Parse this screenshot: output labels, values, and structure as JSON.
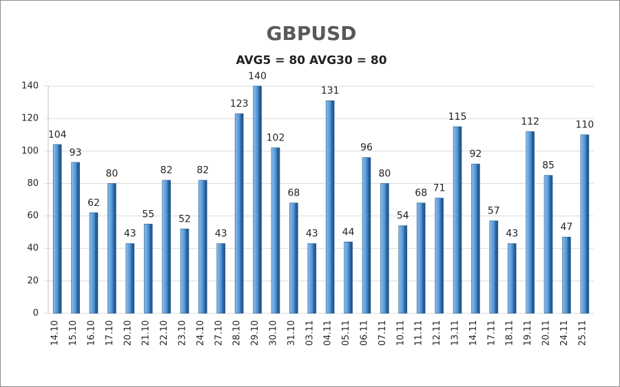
{
  "chart_data": {
    "type": "bar",
    "title": "GBPUSD",
    "subtitle": "AVG5 = 80 AVG30 = 80",
    "categories": [
      "14.10",
      "15.10",
      "16.10",
      "17.10",
      "20.10",
      "21.10",
      "22.10",
      "23.10",
      "24.10",
      "27.10",
      "28.10",
      "29.10",
      "30.10",
      "31.10",
      "03.11",
      "04.11",
      "05.11",
      "06.11",
      "07.11",
      "10.11",
      "11.11",
      "12.11",
      "13.11",
      "14.11",
      "17.11",
      "18.11",
      "19.11",
      "20.11",
      "24.11",
      "25.11"
    ],
    "values": [
      104,
      93,
      62,
      80,
      43,
      55,
      82,
      52,
      82,
      43,
      123,
      140,
      102,
      68,
      43,
      131,
      44,
      96,
      80,
      54,
      68,
      71,
      115,
      92,
      57,
      43,
      112,
      85,
      47,
      110
    ],
    "color": "#4f8fd0",
    "ylim": [
      0,
      140
    ],
    "yticks": [
      0,
      20,
      40,
      60,
      80,
      100,
      120,
      140
    ],
    "grid": true
  }
}
